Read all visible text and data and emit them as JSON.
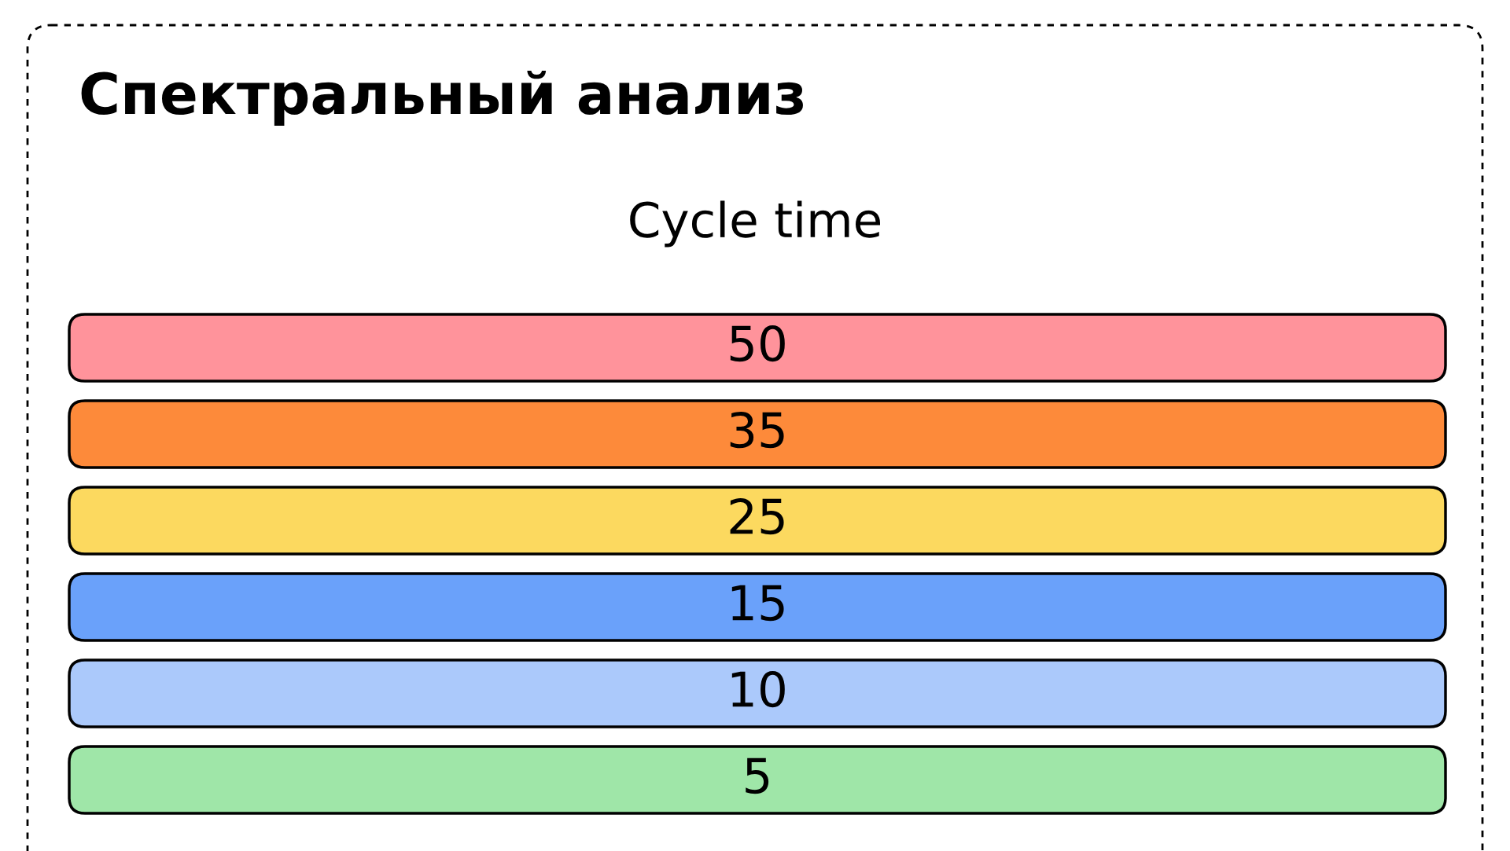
{
  "chart_data": {
    "type": "other",
    "title": "Спектральный анализ",
    "subtitle": "Cycle time",
    "values": [
      50,
      35,
      25,
      15,
      10,
      5
    ],
    "data_labels": true,
    "colors": [
      "#ff939b",
      "#fd8a3a",
      "#fcd95f",
      "#6aa1fa",
      "#abc9fb",
      "#9fe6a8"
    ]
  }
}
